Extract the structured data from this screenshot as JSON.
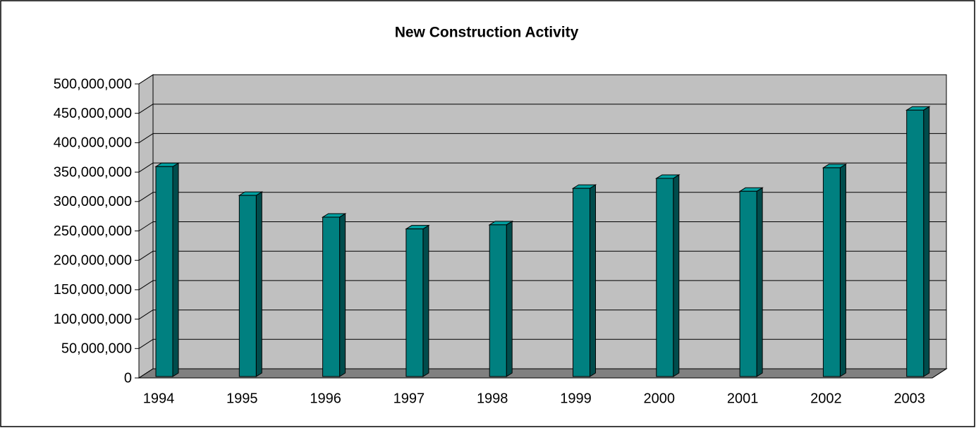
{
  "chart_data": {
    "type": "bar3d",
    "title": "New Construction Activity",
    "categories": [
      "1994",
      "1995",
      "1996",
      "1997",
      "1998",
      "1999",
      "2000",
      "2001",
      "2002",
      "2003"
    ],
    "values": [
      357000000,
      308000000,
      271000000,
      251000000,
      258000000,
      320000000,
      337000000,
      315000000,
      355000000,
      453000000
    ],
    "color": "#008080",
    "ylim": [
      0,
      500000000
    ],
    "yticks": [
      0,
      {
        "value": 50000000,
        "label": "50,000,000"
      },
      {
        "value": 100000000,
        "label": "100,000,000"
      },
      {
        "value": 150000000,
        "label": "150,000,000"
      },
      {
        "value": 200000000,
        "label": "200,000,000"
      },
      {
        "value": 250000000,
        "label": "250,000,000"
      },
      {
        "value": 300000000,
        "label": "300,000,000"
      },
      {
        "value": 350000000,
        "label": "350,000,000"
      },
      {
        "value": 400000000,
        "label": "400,000,000"
      },
      {
        "value": 450000000,
        "label": "450,000,000"
      },
      {
        "value": 500000000,
        "label": "500,000,000"
      }
    ],
    "grid": true
  }
}
